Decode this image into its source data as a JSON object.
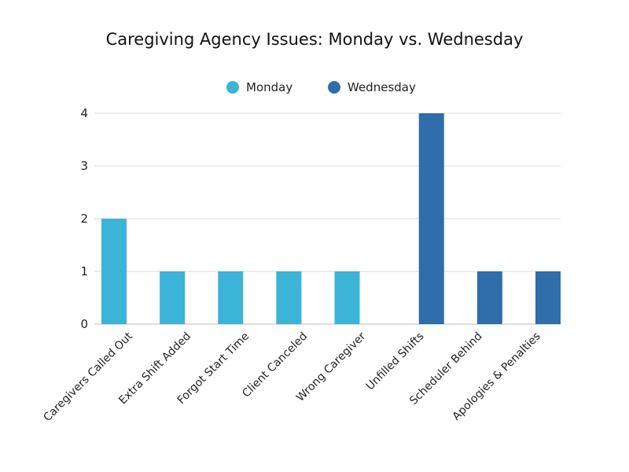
{
  "chart_data": {
    "type": "bar",
    "title": "Caregiving Agency Issues: Monday vs. Wednesday",
    "xlabel": "",
    "ylabel": "",
    "categories": [
      "Caregivers Called Out",
      "Extra Shift Added",
      "Forgot Start Time",
      "Client Canceled",
      "Wrong Caregiver",
      "Unfilled Shifts",
      "Scheduler Behind",
      "Apologies & Penalties"
    ],
    "series": [
      {
        "name": "Monday",
        "color": "#3bb4d8",
        "values": [
          2,
          1,
          1,
          1,
          1,
          0,
          0,
          0
        ]
      },
      {
        "name": "Wednesday",
        "color": "#2f6dab",
        "values": [
          0,
          0,
          0,
          0,
          0,
          4,
          1,
          1
        ]
      }
    ],
    "ylim": [
      0,
      4
    ],
    "yticks": [
      "0",
      "1",
      "2",
      "3",
      "4"
    ],
    "grid": true,
    "legend": "top"
  }
}
